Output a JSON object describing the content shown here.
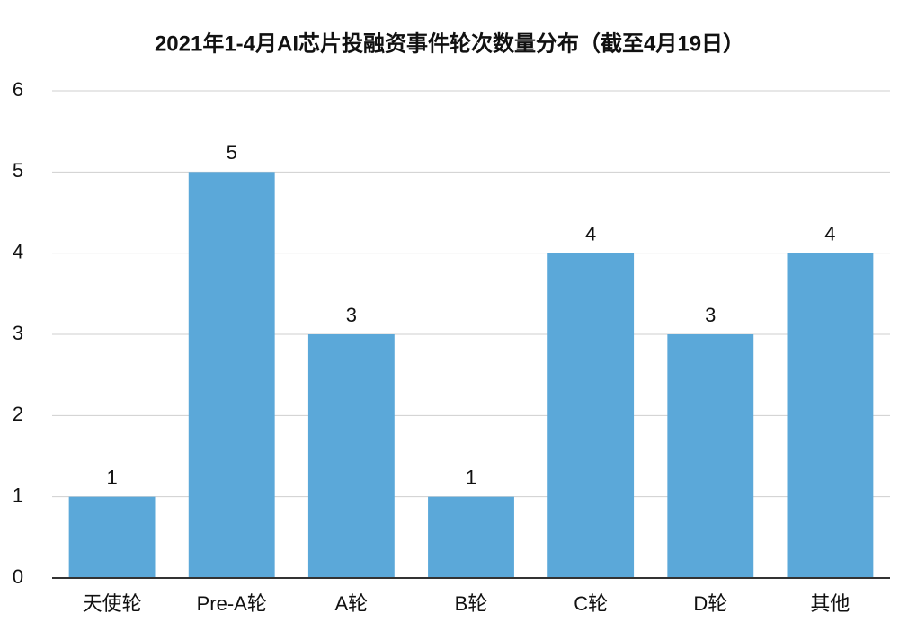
{
  "chart_data": {
    "type": "bar",
    "title": "2021年1-4月AI芯片投融资事件轮次数量分布（截至4月19日）",
    "categories": [
      "天使轮",
      "Pre-A轮",
      "A轮",
      "B轮",
      "C轮",
      "D轮",
      "其他"
    ],
    "values": [
      1,
      5,
      3,
      1,
      4,
      3,
      4
    ],
    "color": "#5ba8d9",
    "ylim": [
      0,
      6
    ],
    "yticks": [
      0,
      1,
      2,
      3,
      4,
      5,
      6
    ],
    "grid": true
  }
}
